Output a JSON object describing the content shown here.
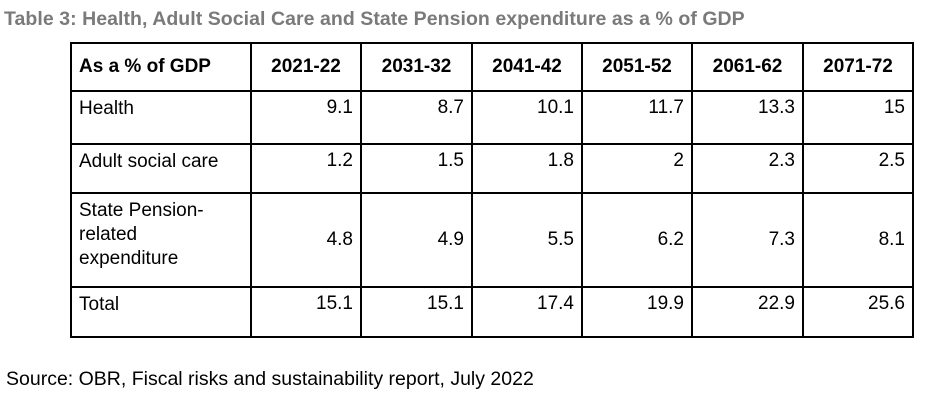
{
  "caption": "Table 3: Health, Adult Social Care and State Pension expenditure as a % of GDP",
  "table": {
    "headers": [
      "As a % of GDP",
      "2021-22",
      "2031-32",
      "2041-42",
      "2051-52",
      "2061-62",
      "2071-72"
    ],
    "rows": [
      {
        "label": "Health",
        "values": [
          "9.1",
          "8.7",
          "10.1",
          "11.7",
          "13.3",
          "15"
        ]
      },
      {
        "label": "Adult social care",
        "values": [
          "1.2",
          "1.5",
          "1.8",
          "2",
          "2.3",
          "2.5"
        ]
      },
      {
        "label_lines": [
          "State Pension-",
          "related",
          "expenditure"
        ],
        "values": [
          "4.8",
          "4.9",
          "5.5",
          "6.2",
          "7.3",
          "8.1"
        ]
      },
      {
        "label": "Total",
        "values": [
          "15.1",
          "15.1",
          "17.4",
          "19.9",
          "22.9",
          "25.6"
        ]
      }
    ]
  },
  "source": "Source: OBR, Fiscal risks and sustainability report, July 2022"
}
